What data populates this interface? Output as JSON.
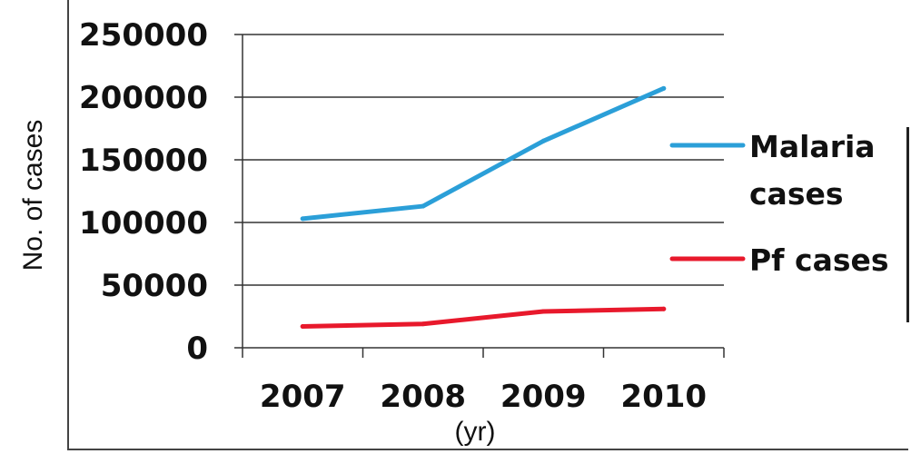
{
  "chart_data": {
    "type": "line",
    "title": "",
    "xlabel": "(yr)",
    "ylabel": "No. of cases",
    "categories": [
      "2007",
      "2008",
      "2009",
      "2010"
    ],
    "ylim": [
      0,
      250000
    ],
    "yticks": [
      "0",
      "50000",
      "100000",
      "150000",
      "200000",
      "250000"
    ],
    "ytick_values": [
      0,
      50000,
      100000,
      150000,
      200000,
      250000
    ],
    "grid": true,
    "legend_position": "right",
    "series": [
      {
        "name": "Malaria cases",
        "legend_lines": [
          "Malaria",
          "cases"
        ],
        "color": "#2b9fd8",
        "values": [
          103000,
          113000,
          165000,
          207000
        ]
      },
      {
        "name": "Pf cases",
        "legend_lines": [
          "Pf cases"
        ],
        "color": "#e8192c",
        "values": [
          17000,
          19000,
          29000,
          31000
        ]
      }
    ]
  }
}
